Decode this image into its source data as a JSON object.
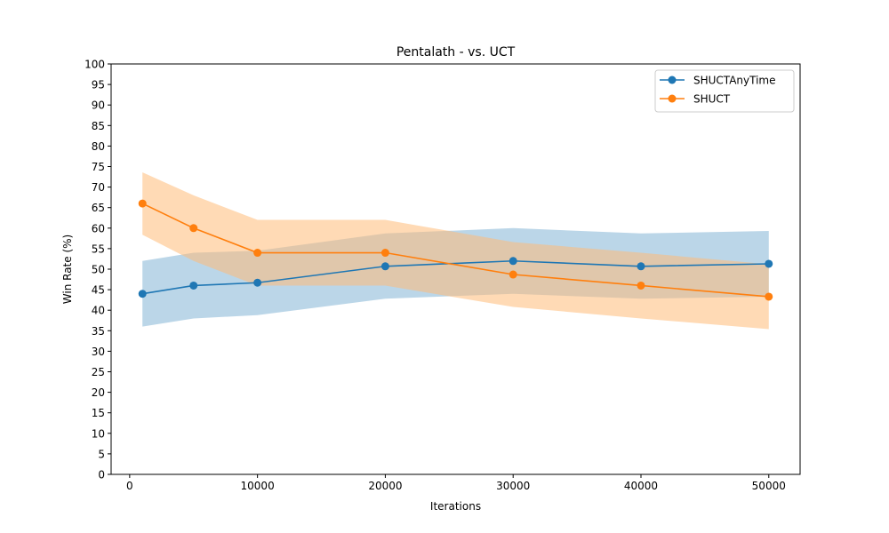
{
  "chart_data": {
    "type": "line",
    "title": "Pentalath - vs. UCT",
    "xlabel": "Iterations",
    "ylabel": "Win Rate (%)",
    "xlim": [
      -1450,
      52450
    ],
    "ylim": [
      0,
      100
    ],
    "x_ticks": [
      0,
      10000,
      20000,
      30000,
      40000,
      50000
    ],
    "y_ticks": [
      0,
      5,
      10,
      15,
      20,
      25,
      30,
      35,
      40,
      45,
      50,
      55,
      60,
      65,
      70,
      75,
      80,
      85,
      90,
      95,
      100
    ],
    "grid": false,
    "legend_position": "top-right",
    "x": [
      1000,
      5000,
      10000,
      20000,
      30000,
      40000,
      50000
    ],
    "series": [
      {
        "name": "SHUCTAnyTime",
        "color": "#1f77b4",
        "band_color": "#1f77b4",
        "values": [
          44.0,
          46.0,
          46.7,
          50.7,
          52.0,
          50.7,
          51.3
        ],
        "lower": [
          36.0,
          38.0,
          38.8,
          42.8,
          44.0,
          42.8,
          43.3
        ],
        "upper": [
          52.0,
          54.0,
          54.5,
          58.7,
          60.0,
          58.7,
          59.3
        ]
      },
      {
        "name": "SHUCT",
        "color": "#ff7f0e",
        "band_color": "#ffbb78",
        "values": [
          66.0,
          60.0,
          54.0,
          54.0,
          48.7,
          46.0,
          43.3
        ],
        "lower": [
          58.4,
          52.0,
          46.0,
          46.0,
          40.8,
          38.0,
          35.4
        ],
        "upper": [
          73.6,
          68.0,
          62.0,
          62.0,
          56.6,
          54.0,
          51.2
        ]
      }
    ]
  }
}
